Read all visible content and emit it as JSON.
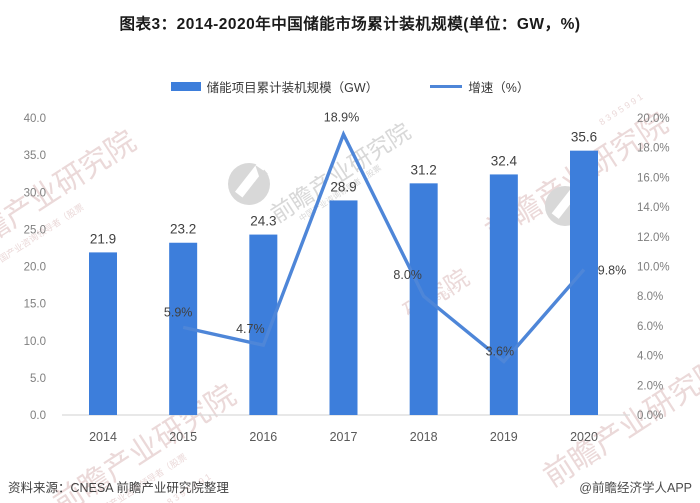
{
  "title": "图表3：2014-2020年中国储能市场累计装机规模(单位：GW，%)",
  "legend": {
    "bar_label": "储能项目累计装机规模（GW）",
    "line_label": "增速（%）"
  },
  "footer": {
    "source": "资料来源：CNESA 前瞻产业研究院整理",
    "credit": "@前瞻经济学人APP"
  },
  "watermark": {
    "brand": "前瞻产业研究院",
    "brand_fragment": "研究院",
    "sub": "中国产业咨询领导者（股票",
    "digits": "8 3 9 5 9 9 1"
  },
  "colors": {
    "bar": "#3D7EDB",
    "line": "#4E86D8",
    "axis_line": "#D9D9D9",
    "tick_text": "#7F7F7F",
    "category_text": "#595959",
    "value_text": "#404040",
    "watermark_pink": "#EBD9D9",
    "watermark_gray": "#D8D8D8"
  },
  "chart_data": {
    "type": "bar+line combo",
    "title": "图表3：2014-2020年中国储能市场累计装机规模(单位：GW，%)",
    "categories": [
      "2014",
      "2015",
      "2016",
      "2017",
      "2018",
      "2019",
      "2020"
    ],
    "series": [
      {
        "name": "储能项目累计装机规模（GW）",
        "type": "bar",
        "axis": "left",
        "values": [
          21.9,
          23.2,
          24.3,
          28.9,
          31.2,
          32.4,
          35.6
        ],
        "labels": [
          "21.9",
          "23.2",
          "24.3",
          "28.9",
          "31.2",
          "32.4",
          "35.6"
        ]
      },
      {
        "name": "增速（%）",
        "type": "line",
        "axis": "right",
        "values": [
          null,
          5.9,
          4.7,
          18.9,
          8.0,
          3.6,
          9.8
        ],
        "labels": [
          null,
          "5.9%",
          "4.7%",
          "18.9%",
          "8.0%",
          "3.6%",
          "9.8%"
        ]
      }
    ],
    "left_axis": {
      "min": 0,
      "max": 40,
      "step": 5,
      "ticks": [
        "0.0",
        "5.0",
        "10.0",
        "15.0",
        "20.0",
        "25.0",
        "30.0",
        "35.0",
        "40.0"
      ]
    },
    "right_axis": {
      "min": 0,
      "max": 20,
      "step": 2,
      "ticks": [
        "0.0%",
        "2.0%",
        "4.0%",
        "6.0%",
        "8.0%",
        "10.0%",
        "12.0%",
        "14.0%",
        "16.0%",
        "18.0%",
        "20.0%"
      ]
    },
    "grid": false,
    "legend_position": "top"
  }
}
